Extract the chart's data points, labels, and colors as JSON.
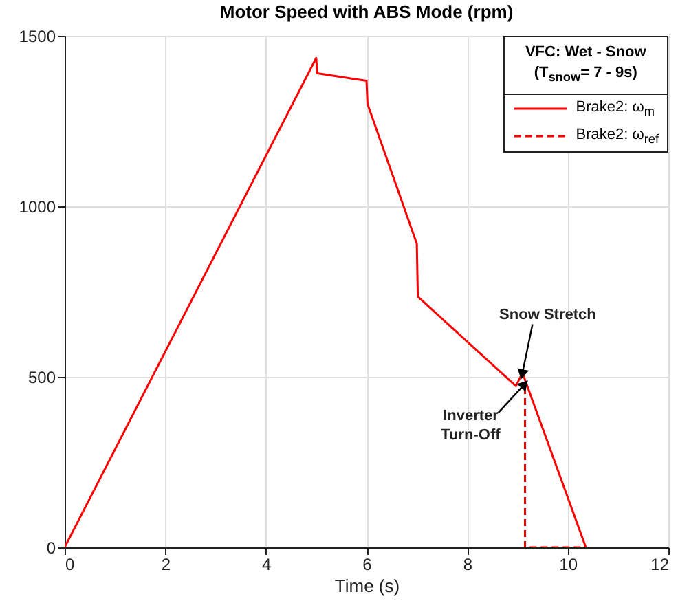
{
  "chart_data": {
    "type": "line",
    "title": "Motor Speed with ABS Mode (rpm)",
    "xlabel": "Time (s)",
    "legend_title": "VFC: Wet - Snow\n(T$_{snow}$= 7 - 9s)",
    "legend": "top right",
    "grid": true,
    "xlim": [
      0,
      12
    ],
    "ylim": [
      0,
      1500
    ],
    "xticks": [
      0,
      2,
      4,
      6,
      8,
      10,
      12
    ],
    "yticks": [
      0,
      500,
      1000,
      1500
    ],
    "series": [
      {
        "name": "Brake2: ω$_{m}$",
        "color": "#ff0000",
        "line_style": "solid",
        "x": [
          0,
          5,
          5.02,
          6,
          6.02,
          7,
          7.02,
          8.97,
          9.1,
          10.36
        ],
        "values": [
          0,
          1435,
          1390,
          1368,
          1300,
          890,
          735,
          473,
          512,
          0
        ]
      },
      {
        "name": "Brake2: ω$_{ref}$",
        "color": "#ff0000",
        "line_style": "dashed",
        "x": [
          9.15,
          9.15,
          10.36
        ],
        "values": [
          470,
          0,
          0
        ]
      }
    ],
    "annotations": [
      {
        "text": "Snow Stretch",
        "x": 9.1,
        "y": 512
      },
      {
        "text": "Inverter Turn-Off",
        "x": 9.12,
        "y": 475
      }
    ]
  }
}
